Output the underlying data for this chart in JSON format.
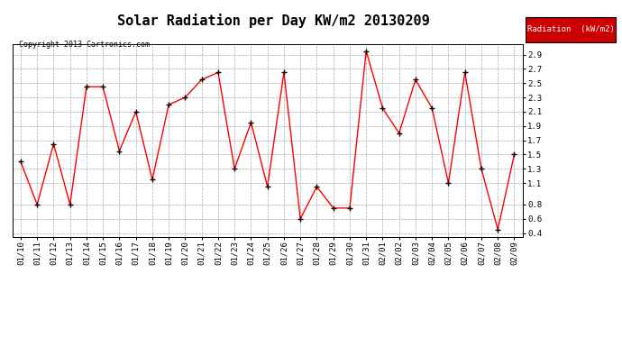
{
  "title": "Solar Radiation per Day KW/m2 20130209",
  "copyright": "Copyright 2013 Cartronics.com",
  "legend_label": "Radiation  (kW/m2)",
  "dates": [
    "01/10",
    "01/11",
    "01/12",
    "01/13",
    "01/14",
    "01/15",
    "01/16",
    "01/17",
    "01/18",
    "01/19",
    "01/20",
    "01/21",
    "01/22",
    "01/23",
    "01/24",
    "01/25",
    "01/26",
    "01/27",
    "01/28",
    "01/29",
    "01/30",
    "01/31",
    "02/01",
    "02/02",
    "02/03",
    "02/04",
    "02/05",
    "02/06",
    "02/07",
    "02/08",
    "02/09"
  ],
  "values": [
    1.4,
    0.8,
    1.65,
    0.8,
    2.45,
    2.45,
    1.55,
    2.1,
    1.15,
    2.2,
    2.3,
    2.55,
    2.65,
    1.3,
    1.95,
    1.05,
    2.65,
    0.6,
    1.05,
    0.75,
    0.75,
    2.95,
    2.15,
    1.8,
    2.55,
    2.15,
    1.1,
    2.65,
    1.3,
    0.45,
    1.5
  ],
  "ylim": [
    0.35,
    3.05
  ],
  "yticks": [
    0.4,
    0.6,
    0.8,
    1.1,
    1.3,
    1.5,
    1.7,
    1.9,
    2.1,
    2.3,
    2.5,
    2.7,
    2.9
  ],
  "line_color": "red",
  "marker_color": "black",
  "bg_color": "#ffffff",
  "grid_color": "#aaaaaa",
  "legend_bg": "#cc0000",
  "legend_text_color": "#ffffff",
  "title_fontsize": 11,
  "tick_fontsize": 6.5,
  "copyright_fontsize": 6.0
}
